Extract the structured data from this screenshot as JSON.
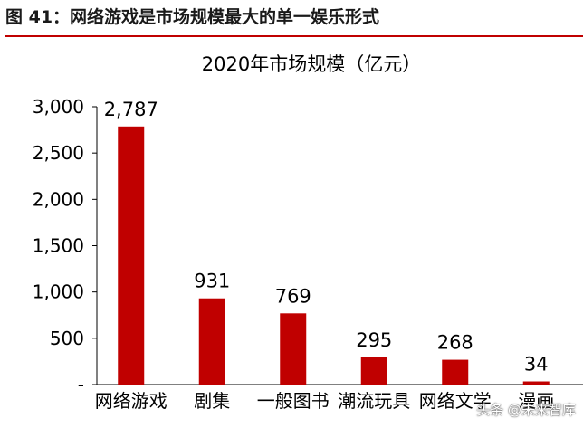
{
  "figure_caption": "图 41：网络游戏是市场规模最大的单一娱乐形式",
  "watermark": "头条 @未来智库",
  "colors": {
    "bar": "#c00000",
    "accent": "#c00000"
  },
  "chart_data": {
    "type": "bar",
    "title": "2020年市场规模（亿元）",
    "xlabel": "",
    "ylabel": "",
    "categories": [
      "网络游戏",
      "剧集",
      "一般图书",
      "潮流玩具",
      "网络文学",
      "漫画"
    ],
    "values": [
      2787,
      931,
      769,
      295,
      268,
      34
    ],
    "value_labels": [
      "2,787",
      "931",
      "769",
      "295",
      "268",
      "34"
    ],
    "ylim": [
      0,
      3000
    ],
    "yticks": [
      0,
      500,
      1000,
      1500,
      2000,
      2500,
      3000
    ],
    "ytick_labels": [
      "-",
      "500",
      "1,000",
      "1,500",
      "2,000",
      "2,500",
      "3,000"
    ],
    "grid": false,
    "legend": "none"
  }
}
